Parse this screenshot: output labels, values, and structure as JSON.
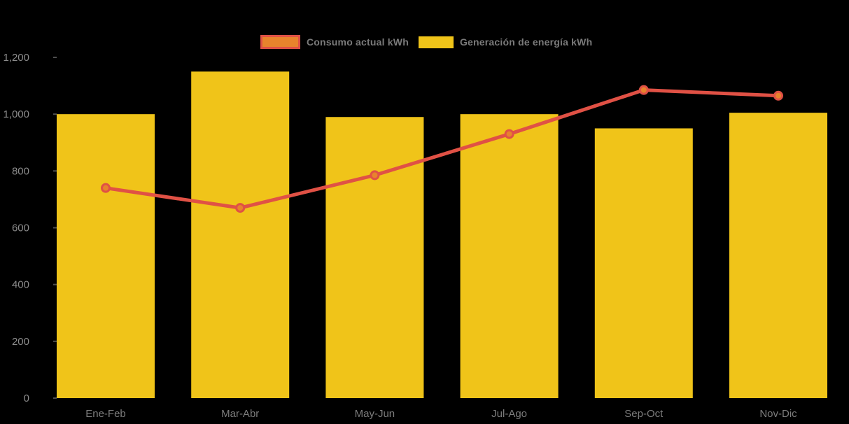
{
  "chart": {
    "background": "#000000",
    "axis_label_color": "#8C8C8C",
    "xaxis_label_color": "#7D7D7D",
    "legend_text_color": "#7A7A7A",
    "tick_mark_color": "#4F4F4F"
  },
  "chart_data": {
    "type": "bar",
    "subtype": "bar-line-combo",
    "title": "",
    "xlabel": "",
    "ylabel": "",
    "categories": [
      "Ene-Feb",
      "Mar-Abr",
      "May-Jun",
      "Jul-Ago",
      "Sep-Oct",
      "Nov-Dic"
    ],
    "series": [
      {
        "name": "Consumo actual kWh",
        "type": "line",
        "color": "#E05145",
        "marker_color": "#E8832C",
        "values": [
          740,
          670,
          785,
          930,
          1085,
          1065
        ]
      },
      {
        "name": "Generación de energía kWh",
        "type": "bar",
        "color": "#F0C419",
        "values": [
          1000,
          1150,
          990,
          1000,
          950,
          1005
        ]
      }
    ],
    "ylim": [
      0,
      1200
    ],
    "yticks": [
      0,
      200,
      400,
      600,
      800,
      1000,
      1200
    ],
    "ytick_labels": [
      "0",
      "200",
      "400",
      "600",
      "800",
      "1,000",
      "1,200"
    ],
    "legend_position": "top",
    "grid": false
  }
}
